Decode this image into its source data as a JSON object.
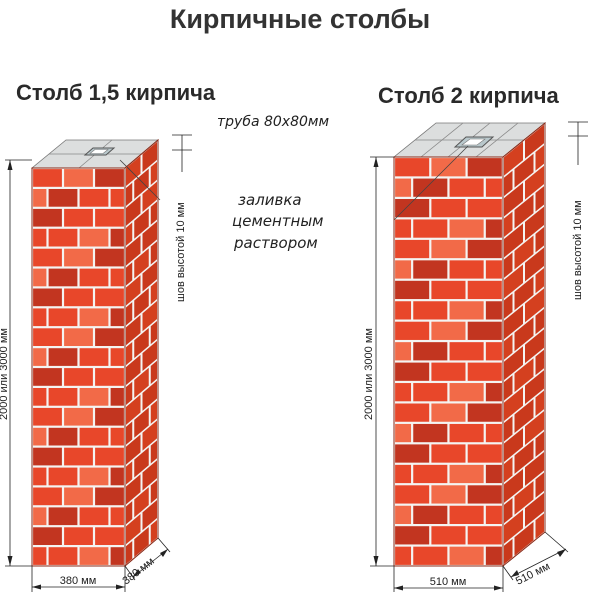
{
  "title": "Кирпичные столбы",
  "pillar_left": {
    "label": "Столб 1,5 кирпича",
    "pipe_note": "труба 80х80мм",
    "height_dim": "2000 или 3000 мм",
    "width_dim": "380 мм",
    "depth_dim": "380 мм",
    "seam_note": "шов высотой 10 мм"
  },
  "pillar_right": {
    "label": "Столб 2 кирпича",
    "height_dim": "2000 или 3000 мм",
    "width_dim": "510 мм",
    "depth_dim": "510 мм",
    "seam_note": "шов высотой 10 мм"
  },
  "fill_note": {
    "line1": "заливка",
    "line2": "цементным",
    "line3": "раствором"
  },
  "colors": {
    "brick": "#e8472a",
    "brick_light": "#f26a48",
    "brick_dark": "#c23520",
    "mortar": "#f4f4f2",
    "top": "#d9dcdc",
    "pipe": "#b9c8cc"
  }
}
